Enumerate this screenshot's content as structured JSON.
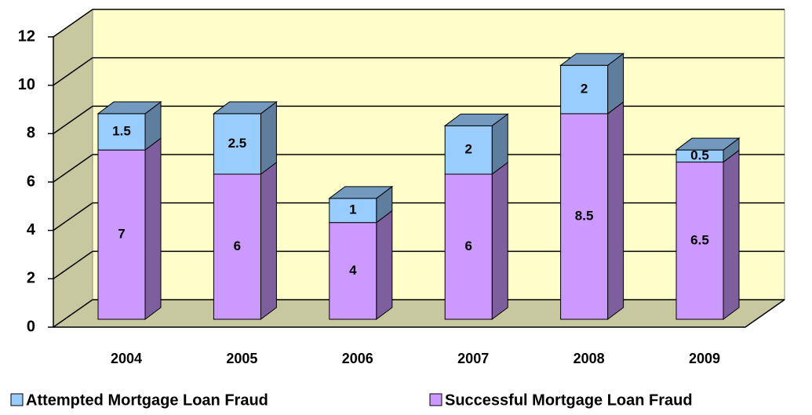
{
  "chart_data": {
    "type": "bar3d_stacked",
    "categories": [
      "2004",
      "2005",
      "2006",
      "2007",
      "2008",
      "2009"
    ],
    "series": [
      {
        "name": "Attempted Mortgage Loan Fraud",
        "color": "#99ccff",
        "values": [
          1.5,
          2.5,
          1,
          2,
          2,
          0.5
        ]
      },
      {
        "name": "Successful Mortgage Loan Fraud",
        "color": "#cc99ff",
        "values": [
          7,
          6,
          4,
          6,
          8.5,
          6.5
        ]
      }
    ],
    "ylim": [
      0,
      12
    ],
    "yticks": [
      0,
      2,
      4,
      6,
      8,
      10,
      12
    ],
    "grid": true,
    "legend": "bottom"
  }
}
